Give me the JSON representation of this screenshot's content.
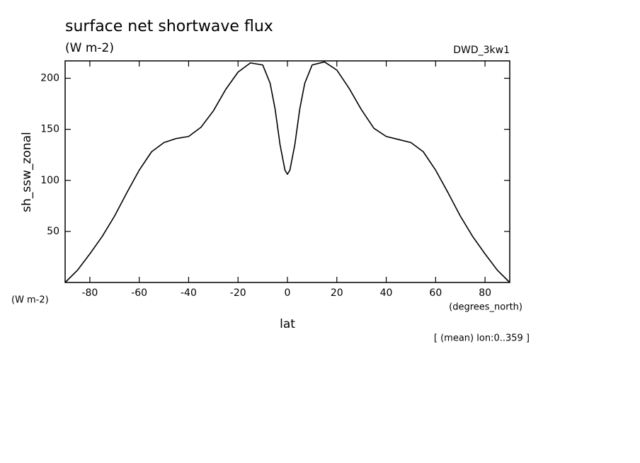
{
  "chart_data": {
    "type": "line",
    "title": "surface net shortwave flux",
    "subtitle": "(W m-2)",
    "dataset": "DWD_3kw1",
    "y_label": "sh_ssw_zonal",
    "y_units": "(W m-2)",
    "x_label": "lat",
    "x_units": "(degrees_north)",
    "note": "[ (mean) lon:0..359 ]",
    "x": [
      -90,
      -85,
      -80,
      -75,
      -70,
      -65,
      -60,
      -55,
      -50,
      -45,
      -40,
      -35,
      -30,
      -25,
      -20,
      -15,
      -10,
      -7,
      -5,
      -3,
      -1,
      0,
      1,
      3,
      5,
      7,
      10,
      15,
      20,
      25,
      30,
      35,
      40,
      45,
      50,
      55,
      60,
      65,
      70,
      75,
      80,
      85,
      90
    ],
    "series": [
      {
        "color": "#000000",
        "values": [
          0,
          12,
          28,
          45,
          65,
          88,
          110,
          128,
          137,
          141,
          143,
          152,
          168,
          189,
          206,
          215,
          213,
          195,
          170,
          135,
          110,
          106,
          110,
          135,
          170,
          195,
          213,
          216,
          208,
          190,
          169,
          151,
          143,
          140,
          137,
          128,
          110,
          88,
          65,
          45,
          28,
          12,
          0
        ]
      }
    ],
    "xlim": [
      -90,
      90
    ],
    "ylim": [
      0,
      217
    ],
    "xticks": [
      -80,
      -60,
      -40,
      -20,
      0,
      20,
      40,
      60,
      80
    ],
    "yticks": [
      50,
      100,
      150,
      200
    ]
  }
}
